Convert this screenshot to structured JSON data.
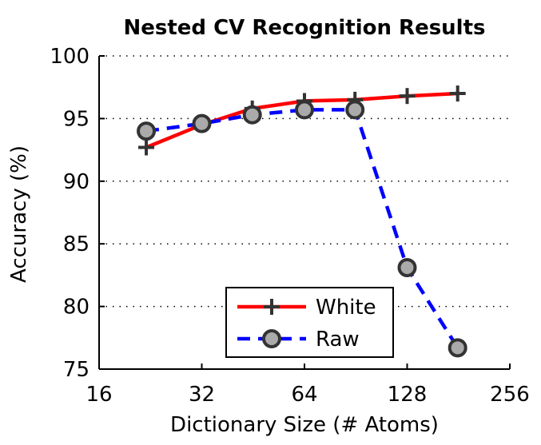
{
  "chart_data": {
    "type": "line",
    "title": "Nested CV Recognition Results",
    "xlabel": "Dictionary Size (# Atoms)",
    "ylabel": "Accuracy (%)",
    "x_scale": "log2",
    "xlim": [
      16,
      256
    ],
    "ylim": [
      75,
      100
    ],
    "x_ticks": [
      16,
      32,
      64,
      128,
      256
    ],
    "y_ticks": [
      75,
      80,
      85,
      90,
      95,
      100
    ],
    "grid": "horizontal dotted",
    "legend_position": "bottom-center",
    "series": [
      {
        "name": "White",
        "color": "#ff0000",
        "line": "solid",
        "marker": "plus",
        "x": [
          22,
          32,
          45,
          64,
          90,
          128,
          180
        ],
        "y": [
          92.7,
          94.5,
          95.8,
          96.4,
          96.5,
          96.8,
          97.0
        ]
      },
      {
        "name": "Raw",
        "color": "#0000ff",
        "line": "dashed",
        "marker": "circle",
        "x": [
          22,
          32,
          45,
          64,
          90,
          128,
          180
        ],
        "y": [
          94.0,
          94.6,
          95.3,
          95.7,
          95.7,
          83.1,
          76.7
        ]
      }
    ]
  }
}
